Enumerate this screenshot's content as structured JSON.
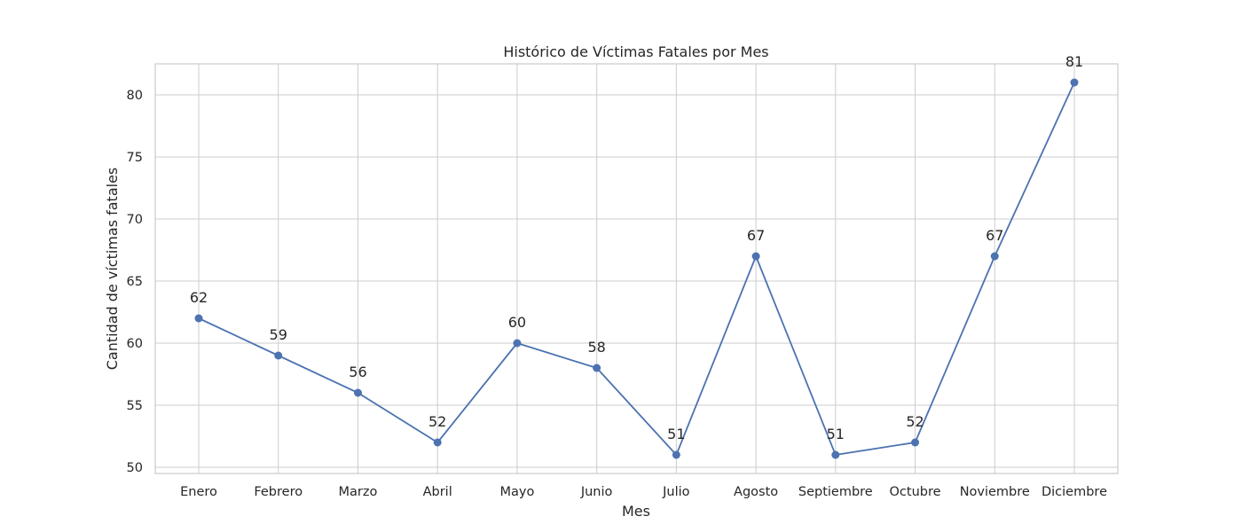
{
  "chart_data": {
    "type": "line",
    "title": "Histórico de Víctimas Fatales por Mes",
    "xlabel": "Mes",
    "ylabel": "Cantidad de víctimas fatales",
    "categories": [
      "Enero",
      "Febrero",
      "Marzo",
      "Abril",
      "Mayo",
      "Junio",
      "Julio",
      "Agosto",
      "Septiembre",
      "Octubre",
      "Noviembre",
      "Diciembre"
    ],
    "values": [
      62,
      59,
      56,
      52,
      60,
      58,
      51,
      67,
      51,
      52,
      67,
      81
    ],
    "yticks": [
      50,
      55,
      60,
      65,
      70,
      75,
      80
    ],
    "ylim": [
      49.5,
      82.5
    ],
    "grid": true,
    "line_color": "#4c72b0",
    "marker": "circle",
    "data_labels": true
  }
}
